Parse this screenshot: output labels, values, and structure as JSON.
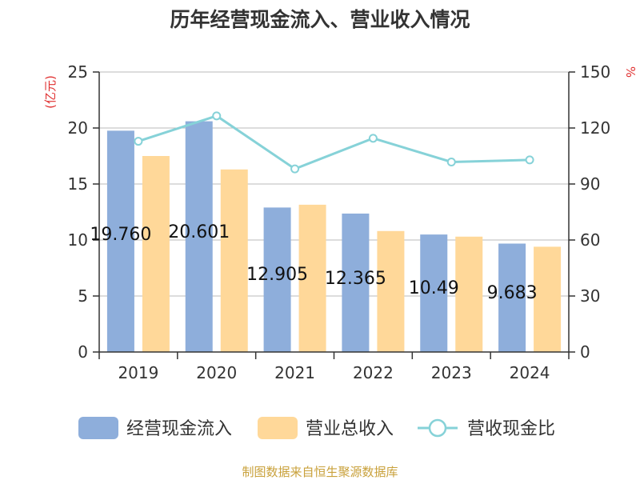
{
  "chart_data": {
    "type": "bar",
    "title": "历年经营现金流入、营业收入情况",
    "left_axis_unit": "(亿元)",
    "right_axis_unit": "%",
    "categories": [
      "2019",
      "2020",
      "2021",
      "2022",
      "2023",
      "2024"
    ],
    "left_ylim": [
      0,
      25
    ],
    "left_ticks": [
      0,
      5,
      10,
      15,
      20,
      25
    ],
    "right_ylim": [
      0,
      150
    ],
    "right_ticks": [
      0,
      30,
      60,
      90,
      120,
      150
    ],
    "grid": true,
    "legend_position": "bottom",
    "series": [
      {
        "name": "经营现金流入",
        "type": "bar",
        "axis": "left",
        "color": "#8eaedb",
        "values": [
          19.76,
          20.6,
          12.9,
          12.36,
          10.49,
          9.68
        ],
        "labels": [
          "19.760",
          "20.601",
          "12.905",
          "12.365",
          "10.49",
          "9.683"
        ]
      },
      {
        "name": "营业总收入",
        "type": "bar",
        "axis": "left",
        "color": "#ffd899",
        "values": [
          17.5,
          16.3,
          13.15,
          10.8,
          10.3,
          9.4
        ]
      },
      {
        "name": "营收现金比",
        "type": "line",
        "axis": "right",
        "color": "#86d2d8",
        "values": [
          112.9,
          126.5,
          98.1,
          114.5,
          101.8,
          102.9
        ]
      }
    ],
    "source": "制图数据来自恒生聚源数据库",
    "colors": {
      "title": "#333333",
      "axis_text": "#333333",
      "unit_text": "#e03030",
      "grid": "#bbbbbb",
      "source_text": "#c9a13b"
    }
  }
}
